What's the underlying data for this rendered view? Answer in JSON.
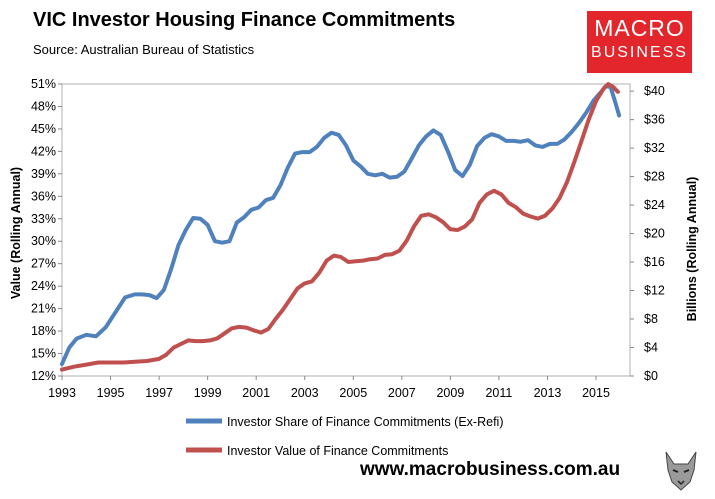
{
  "header": {
    "title": "VIC Investor Housing Finance Commitments",
    "subtitle": "Source: Australian Bureau of Statistics"
  },
  "logo": {
    "line1": "MACRO",
    "line2": "BUSINESS",
    "color": "#e3262b"
  },
  "footer": {
    "website": "www.macrobusiness.com.au"
  },
  "chart_data": {
    "type": "line",
    "title": "VIC Investor Housing Finance Commitments",
    "subtitle": "Source: Australian Bureau of Statistics",
    "ylabel_left": "Value (Rolling Annual)",
    "ylabel_right": "Billions (Rolling Annual)",
    "xlabel": "",
    "x_ticks": [
      "1993",
      "1995",
      "1997",
      "1999",
      "2001",
      "2003",
      "2005",
      "2007",
      "2009",
      "2011",
      "2013",
      "2015"
    ],
    "y_left_ticks": [
      "12%",
      "15%",
      "18%",
      "21%",
      "24%",
      "27%",
      "30%",
      "33%",
      "36%",
      "39%",
      "42%",
      "45%",
      "48%",
      "51%"
    ],
    "y_right_ticks": [
      "$0",
      "$4",
      "$8",
      "$12",
      "$16",
      "$20",
      "$24",
      "$28",
      "$32",
      "$36",
      "$40"
    ],
    "xlim": [
      1993,
      2016.4
    ],
    "ylim_left": [
      12,
      51
    ],
    "ylim_right": [
      0,
      41
    ],
    "grid": false,
    "legend_position": "bottom",
    "series": [
      {
        "name": "Investor Share of Finance Commitments (Ex-Refi)",
        "axis": "left",
        "color": "#4f81bd",
        "x": [
          1993.0,
          1993.3,
          1993.6,
          1994.0,
          1994.4,
          1994.8,
          1995.2,
          1995.6,
          1996.0,
          1996.3,
          1996.6,
          1996.9,
          1997.2,
          1997.5,
          1997.8,
          1998.1,
          1998.4,
          1998.7,
          1999.0,
          1999.3,
          1999.6,
          1999.9,
          2000.2,
          2000.5,
          2000.8,
          2001.1,
          2001.4,
          2001.7,
          2002.0,
          2002.3,
          2002.6,
          2002.9,
          2003.2,
          2003.5,
          2003.8,
          2004.1,
          2004.4,
          2004.7,
          2005.0,
          2005.3,
          2005.6,
          2005.9,
          2006.2,
          2006.5,
          2006.8,
          2007.1,
          2007.4,
          2007.7,
          2008.0,
          2008.3,
          2008.6,
          2008.9,
          2009.2,
          2009.5,
          2009.8,
          2010.1,
          2010.4,
          2010.7,
          2011.0,
          2011.3,
          2011.6,
          2011.9,
          2012.2,
          2012.5,
          2012.8,
          2013.1,
          2013.4,
          2013.7,
          2014.0,
          2014.3,
          2014.6,
          2014.9,
          2015.2,
          2015.4,
          2015.6,
          2015.8,
          2015.95
        ],
        "values": [
          13.6,
          15.8,
          17.0,
          17.5,
          17.3,
          18.5,
          20.5,
          22.5,
          22.9,
          22.9,
          22.8,
          22.4,
          23.5,
          26.3,
          29.5,
          31.5,
          33.1,
          33.0,
          32.2,
          30.0,
          29.8,
          30.0,
          32.5,
          33.2,
          34.2,
          34.5,
          35.5,
          35.8,
          37.5,
          39.8,
          41.7,
          41.9,
          41.9,
          42.6,
          43.8,
          44.5,
          44.2,
          42.8,
          40.8,
          40.0,
          39.0,
          38.8,
          39.0,
          38.5,
          38.6,
          39.3,
          41.0,
          42.8,
          44.0,
          44.8,
          44.2,
          42.0,
          39.5,
          38.7,
          40.2,
          42.7,
          43.8,
          44.3,
          44.0,
          43.4,
          43.4,
          43.3,
          43.5,
          42.8,
          42.6,
          43.0,
          43.0,
          43.6,
          44.6,
          45.8,
          47.2,
          48.8,
          49.9,
          50.7,
          50.6,
          48.5,
          46.8
        ]
      },
      {
        "name": "Investor Value of Finance Commitments",
        "axis": "right",
        "color": "#c0504d",
        "x": [
          1993.0,
          1993.5,
          1994.0,
          1994.5,
          1995.0,
          1995.5,
          1996.0,
          1996.5,
          1997.0,
          1997.3,
          1997.6,
          1997.9,
          1998.2,
          1998.5,
          1998.8,
          1999.1,
          1999.4,
          1999.7,
          2000.0,
          2000.3,
          2000.6,
          2000.9,
          2001.2,
          2001.5,
          2001.8,
          2002.1,
          2002.4,
          2002.7,
          2003.0,
          2003.3,
          2003.6,
          2003.9,
          2004.2,
          2004.5,
          2004.8,
          2005.1,
          2005.4,
          2005.7,
          2006.0,
          2006.3,
          2006.6,
          2006.9,
          2007.2,
          2007.5,
          2007.8,
          2008.1,
          2008.4,
          2008.7,
          2009.0,
          2009.3,
          2009.6,
          2009.9,
          2010.2,
          2010.5,
          2010.8,
          2011.1,
          2011.4,
          2011.7,
          2012.0,
          2012.3,
          2012.6,
          2012.9,
          2013.2,
          2013.5,
          2013.8,
          2014.1,
          2014.4,
          2014.7,
          2015.0,
          2015.3,
          2015.5,
          2015.7,
          2015.9
        ],
        "values": [
          0.9,
          1.3,
          1.6,
          1.9,
          1.9,
          1.9,
          2.0,
          2.1,
          2.4,
          3.0,
          4.0,
          4.5,
          5.0,
          4.9,
          4.9,
          5.0,
          5.3,
          6.0,
          6.7,
          6.9,
          6.8,
          6.4,
          6.1,
          6.6,
          8.0,
          9.3,
          10.8,
          12.3,
          13.0,
          13.3,
          14.5,
          16.2,
          16.9,
          16.7,
          16.0,
          16.1,
          16.2,
          16.4,
          16.5,
          17.0,
          17.1,
          17.6,
          19.0,
          21.0,
          22.5,
          22.7,
          22.3,
          21.6,
          20.6,
          20.5,
          21.0,
          22.0,
          24.3,
          25.5,
          26.0,
          25.5,
          24.3,
          23.7,
          22.8,
          22.4,
          22.1,
          22.5,
          23.5,
          25.0,
          27.2,
          30.0,
          33.0,
          36.0,
          38.6,
          40.3,
          41.0,
          40.6,
          39.9
        ]
      }
    ]
  }
}
